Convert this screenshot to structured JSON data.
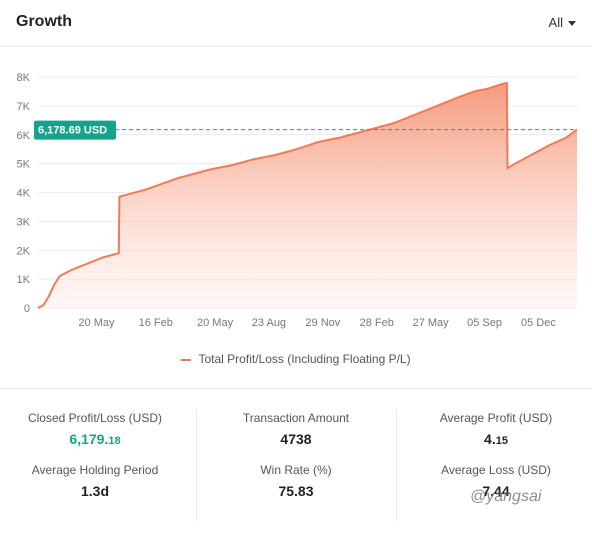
{
  "header": {
    "title": "Growth",
    "range_label": "All"
  },
  "chart_data": {
    "type": "area",
    "title": "Growth",
    "y_ticks": [
      "0",
      "1K",
      "2K",
      "3K",
      "4K",
      "5K",
      "6K",
      "7K",
      "8K"
    ],
    "ylim": [
      0,
      8000
    ],
    "x_ticks": [
      {
        "label": "20 May",
        "x": 0.14
      },
      {
        "label": "16 Feb",
        "x": 0.25
      },
      {
        "label": "20 May",
        "x": 0.36
      },
      {
        "label": "23 Aug",
        "x": 0.46
      },
      {
        "label": "29 Nov",
        "x": 0.56
      },
      {
        "label": "28 Feb",
        "x": 0.66
      },
      {
        "label": "27 May",
        "x": 0.76
      },
      {
        "label": "05 Sep",
        "x": 0.86
      },
      {
        "label": "05 Dec",
        "x": 0.96
      }
    ],
    "series": [
      {
        "name": "Total Profit/Loss (Including Floating P/L)",
        "color": "#ef7b58",
        "points": [
          [
            0,
            0
          ],
          [
            0.01,
            100
          ],
          [
            0.02,
            400
          ],
          [
            0.03,
            800
          ],
          [
            0.04,
            1100
          ],
          [
            0.06,
            1300
          ],
          [
            0.08,
            1450
          ],
          [
            0.1,
            1600
          ],
          [
            0.12,
            1750
          ],
          [
            0.14,
            1850
          ],
          [
            0.15,
            1900
          ],
          [
            0.151,
            3850
          ],
          [
            0.17,
            3950
          ],
          [
            0.2,
            4100
          ],
          [
            0.23,
            4300
          ],
          [
            0.26,
            4500
          ],
          [
            0.29,
            4650
          ],
          [
            0.32,
            4800
          ],
          [
            0.36,
            4950
          ],
          [
            0.4,
            5150
          ],
          [
            0.44,
            5300
          ],
          [
            0.48,
            5500
          ],
          [
            0.52,
            5750
          ],
          [
            0.56,
            5900
          ],
          [
            0.6,
            6100
          ],
          [
            0.63,
            6250
          ],
          [
            0.66,
            6400
          ],
          [
            0.7,
            6700
          ],
          [
            0.74,
            7000
          ],
          [
            0.78,
            7300
          ],
          [
            0.81,
            7500
          ],
          [
            0.835,
            7600
          ],
          [
            0.86,
            7750
          ],
          [
            0.87,
            7800
          ],
          [
            0.871,
            4850
          ],
          [
            0.89,
            5050
          ],
          [
            0.92,
            5350
          ],
          [
            0.95,
            5650
          ],
          [
            0.98,
            5900
          ],
          [
            1.0,
            6180
          ]
        ]
      }
    ],
    "marker": {
      "label": "6,178.69 USD",
      "value": 6178.69,
      "color": "#14a38b"
    },
    "grid": true,
    "legend": "bottom-center"
  },
  "stats": {
    "closed_profit": {
      "label": "Closed Profit/Loss (USD)",
      "whole": "6,179.",
      "dec": "18"
    },
    "transaction_amount": {
      "label": "Transaction Amount",
      "value": "4738"
    },
    "average_profit": {
      "label": "Average Profit (USD)",
      "whole": "4.",
      "dec": "15"
    },
    "holding_period": {
      "label": "Average Holding Period",
      "value": "1.3d"
    },
    "win_rate": {
      "label": "Win Rate (%)",
      "value": "75.83"
    },
    "average_loss": {
      "label": "Average Loss (USD)",
      "value": "7.44"
    }
  },
  "watermark": "@yangsai"
}
